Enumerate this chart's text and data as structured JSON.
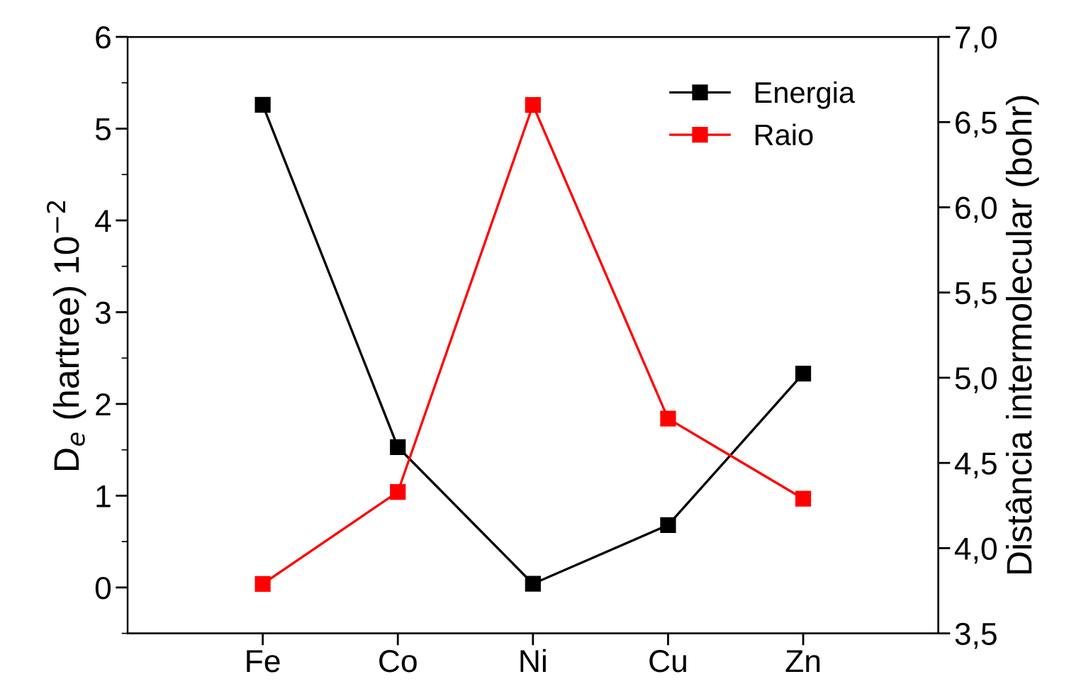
{
  "chart_data": {
    "type": "line",
    "categories": [
      "Fe",
      "Co",
      "Ni",
      "Cu",
      "Zn"
    ],
    "ylabel": "D$_{e}$ (hartree) 10$^{−2}$",
    "y2label": "Distância intermolecular (bohr)",
    "ylim": [
      -0.5,
      6
    ],
    "yticks": [
      0,
      1,
      2,
      3,
      4,
      5,
      6
    ],
    "y2lim": [
      3.5,
      7.0
    ],
    "y2ticks": [
      {
        "value": 3.5,
        "label": "3,5"
      },
      {
        "value": 4.0,
        "label": "4,0"
      },
      {
        "value": 4.5,
        "label": "4,5"
      },
      {
        "value": 5.0,
        "label": "5,0"
      },
      {
        "value": 5.5,
        "label": "5,5"
      },
      {
        "value": 6.0,
        "label": "6,0"
      },
      {
        "value": 6.5,
        "label": "6,5"
      },
      {
        "value": 7.0,
        "label": "7,0"
      }
    ],
    "marker": "square",
    "line_style": "solid",
    "legend": "top right",
    "grid": false,
    "series": [
      {
        "name": "Energia",
        "color": "#000000",
        "values": [
          5.26,
          1.53,
          0.04,
          0.68,
          2.33
        ]
      },
      {
        "name": "Raio",
        "color": "#ff0000",
        "axis": "y2",
        "values": [
          3.79,
          4.33,
          6.6,
          4.76,
          4.29
        ]
      }
    ]
  }
}
